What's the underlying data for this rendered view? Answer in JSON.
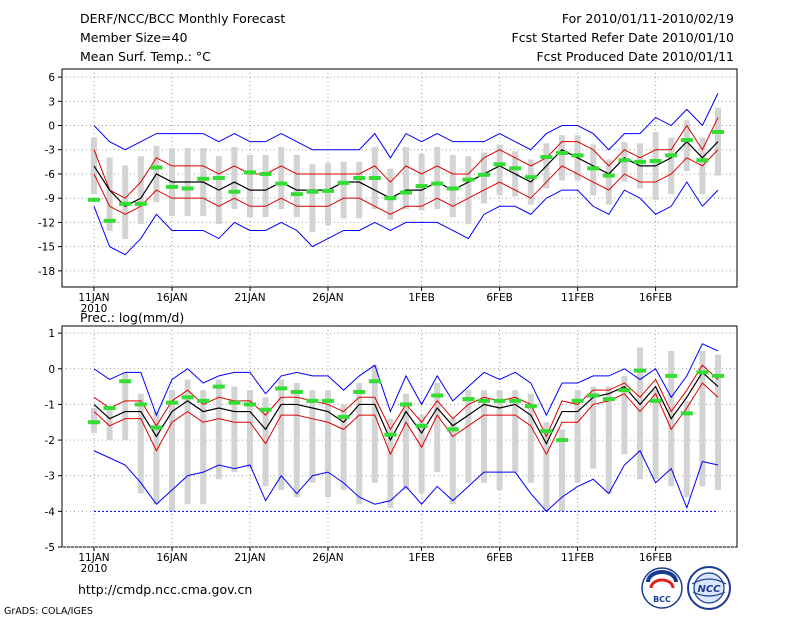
{
  "header": {
    "left": [
      "DERF/NCC/BCC Monthly Forecast",
      "Member Size=40",
      "Mean Surf. Temp.: °C"
    ],
    "right": [
      "For 2010/01/11-2010/02/19",
      "Fcst Started Refer Date 2010/01/10",
      "Fcst Produced Date 2010/01/11"
    ]
  },
  "precip_label": "Prec.: log(mm/d)",
  "footer": {
    "url": "http://cmdp.ncc.cma.gov.cn",
    "credit": "GrADS: COLA/IGES",
    "logos": [
      {
        "name": "bcc-logo",
        "text": "BCC"
      },
      {
        "name": "ncc-logo",
        "text": "NCC"
      }
    ]
  },
  "colors": {
    "grid": "#9a9a9a",
    "bar": "#d3d3d3",
    "ensemble_min_max": "#0000ff",
    "std_band": "#dd0000",
    "mean": "#000000",
    "median": "#33dd33"
  },
  "chart_data": [
    {
      "type": "line",
      "title": "Mean Surf. Temp.: °C",
      "ylim": [
        -20,
        7
      ],
      "yticks": [
        6,
        3,
        0,
        -3,
        -6,
        -9,
        -12,
        -15,
        -18
      ],
      "x_days": 40,
      "xticks": [
        {
          "day": 0,
          "label": "11JAN",
          "sub": "2010"
        },
        {
          "day": 5,
          "label": "16JAN"
        },
        {
          "day": 10,
          "label": "21JAN"
        },
        {
          "day": 15,
          "label": "26JAN"
        },
        {
          "day": 21,
          "label": "1FEB"
        },
        {
          "day": 26,
          "label": "6FEB"
        },
        {
          "day": 31,
          "label": "11FEB"
        },
        {
          "day": 36,
          "label": "16FEB"
        }
      ],
      "series": [
        {
          "name": "max",
          "values": [
            0,
            -2,
            -3,
            -2,
            -1,
            -1,
            -1,
            -1,
            -2,
            -1,
            -2,
            -2,
            -1,
            -2,
            -3,
            -3,
            -3,
            -3,
            -1,
            -4,
            -1,
            -2,
            -1,
            -2,
            -2,
            -2,
            -1,
            -2,
            -3,
            -1,
            0,
            0,
            -1,
            -3,
            -1,
            -1,
            1,
            0,
            2,
            0,
            4
          ]
        },
        {
          "name": "std_high",
          "values": [
            -3,
            -8,
            -9,
            -7,
            -4,
            -5,
            -5,
            -5,
            -6,
            -5,
            -6,
            -6,
            -5,
            -6,
            -6,
            -6,
            -6,
            -6,
            -5,
            -7,
            -5,
            -6,
            -5,
            -6,
            -6,
            -4,
            -3,
            -4,
            -5,
            -4,
            -2,
            -2,
            -3,
            -5,
            -3,
            -4,
            -3,
            -3,
            0,
            -3,
            1
          ]
        },
        {
          "name": "mean",
          "values": [
            -5,
            -8,
            -10,
            -9,
            -6,
            -7,
            -7,
            -7,
            -8,
            -7,
            -8,
            -8,
            -7,
            -8,
            -8,
            -8,
            -7,
            -7,
            -8,
            -9,
            -8,
            -8,
            -7,
            -8,
            -7,
            -6,
            -5,
            -6,
            -7,
            -5,
            -3,
            -4,
            -5,
            -6,
            -4,
            -5,
            -5,
            -4,
            -2,
            -4,
            -2
          ]
        },
        {
          "name": "std_low",
          "values": [
            -6,
            -10,
            -11,
            -10,
            -8,
            -9,
            -9,
            -9,
            -10,
            -9,
            -10,
            -10,
            -9,
            -10,
            -10,
            -10,
            -9,
            -9,
            -10,
            -11,
            -10,
            -10,
            -9,
            -10,
            -9,
            -8,
            -7,
            -8,
            -9,
            -7,
            -5,
            -6,
            -7,
            -8,
            -6,
            -7,
            -7,
            -6,
            -4,
            -5,
            -3
          ]
        },
        {
          "name": "min",
          "values": [
            -10,
            -15,
            -16,
            -14,
            -11,
            -13,
            -13,
            -13,
            -14,
            -12,
            -13,
            -13,
            -12,
            -13,
            -15,
            -14,
            -13,
            -13,
            -12,
            -13,
            -12,
            -12,
            -12,
            -13,
            -14,
            -11,
            -10,
            -10,
            -11,
            -9,
            -8,
            -8,
            -10,
            -11,
            -8,
            -9,
            -11,
            -10,
            -7,
            -10,
            -8
          ]
        },
        {
          "name": "median",
          "values": [
            -9.2,
            -11.8,
            -9.7,
            -9.7,
            -5.2,
            -7.6,
            -7.8,
            -6.6,
            -6.5,
            -8.2,
            -5.8,
            -6,
            -7.2,
            -8.5,
            -8.2,
            -8.1,
            -7.1,
            -6.5,
            -6.5,
            -9,
            -8.3,
            -7.5,
            -7.2,
            -7.8,
            -6.7,
            -6.1,
            -4.8,
            -5.3,
            -6.4,
            -3.9,
            -3.4,
            -3.7,
            -5.3,
            -6.2,
            -4.3,
            -4.5,
            -4.4,
            -3.7,
            -1.8,
            -4.3,
            -0.8
          ]
        }
      ]
    },
    {
      "type": "line",
      "title": "Prec.: log(mm/d)",
      "ylim": [
        -5,
        1.2
      ],
      "yticks": [
        1,
        0,
        -1,
        -2,
        -3,
        -4,
        -5
      ],
      "x_days": 40,
      "xticks": [
        {
          "day": 0,
          "label": "11JAN",
          "sub": "2010"
        },
        {
          "day": 5,
          "label": "16JAN"
        },
        {
          "day": 10,
          "label": "21JAN"
        },
        {
          "day": 15,
          "label": "26JAN"
        },
        {
          "day": 21,
          "label": "1FEB"
        },
        {
          "day": 26,
          "label": "6FEB"
        },
        {
          "day": 31,
          "label": "11FEB"
        },
        {
          "day": 36,
          "label": "16FEB"
        }
      ],
      "series": [
        {
          "name": "max",
          "values": [
            0,
            -0.3,
            -0.1,
            -0.1,
            -1.3,
            -0.3,
            0,
            -0.4,
            -0.2,
            -0.1,
            -0.1,
            -0.7,
            -0.2,
            -0.1,
            -0.2,
            -0.2,
            -0.6,
            -0.2,
            0.1,
            -1.2,
            -0.2,
            -1,
            -0.2,
            -0.9,
            -0.5,
            -0.1,
            -0.3,
            -0.1,
            -0.4,
            -1.3,
            -0.4,
            -0.4,
            -0.2,
            -0.2,
            0,
            -0.3,
            0,
            -0.8,
            -0.2,
            0.7,
            0.5
          ]
        },
        {
          "name": "std_high",
          "values": [
            -0.8,
            -1.1,
            -0.9,
            -0.9,
            -1.6,
            -0.9,
            -0.6,
            -1,
            -0.8,
            -0.9,
            -0.9,
            -1.3,
            -0.8,
            -0.8,
            -0.9,
            -1,
            -1.2,
            -0.8,
            -0.8,
            -1.7,
            -1,
            -1.5,
            -0.9,
            -1.4,
            -1,
            -0.8,
            -0.9,
            -0.8,
            -1,
            -1.9,
            -0.9,
            -1,
            -0.6,
            -0.6,
            -0.4,
            -0.8,
            -0.3,
            -1.2,
            -0.6,
            0.1,
            -0.3
          ]
        },
        {
          "name": "mean",
          "values": [
            -1,
            -1.4,
            -1.2,
            -1.2,
            -1.9,
            -1.2,
            -0.9,
            -1.2,
            -1.1,
            -1.2,
            -1.2,
            -1.7,
            -1,
            -1,
            -1.1,
            -1.2,
            -1.5,
            -1,
            -1,
            -2,
            -1.2,
            -1.8,
            -1.1,
            -1.6,
            -1.3,
            -1,
            -1.1,
            -1,
            -1.3,
            -2.1,
            -1.2,
            -1.2,
            -0.8,
            -0.7,
            -0.5,
            -1,
            -0.5,
            -1.4,
            -0.8,
            -0.1,
            -0.5
          ]
        },
        {
          "name": "std_low",
          "values": [
            -1.2,
            -1.6,
            -1.4,
            -1.4,
            -2.3,
            -1.5,
            -1.2,
            -1.5,
            -1.4,
            -1.5,
            -1.5,
            -2.1,
            -1.3,
            -1.3,
            -1.4,
            -1.5,
            -1.7,
            -1.3,
            -1.3,
            -2.4,
            -1.5,
            -2.2,
            -1.3,
            -1.9,
            -1.6,
            -1.3,
            -1.3,
            -1.3,
            -1.6,
            -2.4,
            -1.5,
            -1.5,
            -1,
            -0.9,
            -0.7,
            -1.2,
            -0.7,
            -1.7,
            -1.1,
            -0.4,
            -0.8
          ]
        },
        {
          "name": "min",
          "values": [
            -2.3,
            -2.5,
            -2.7,
            -3.2,
            -3.8,
            -3.4,
            -3,
            -2.9,
            -2.7,
            -2.8,
            -2.7,
            -3.7,
            -3,
            -3.5,
            -3,
            -2.9,
            -3.2,
            -3.6,
            -3.8,
            -3.7,
            -3.3,
            -3.8,
            -3.3,
            -3.7,
            -3.3,
            -2.9,
            -2.9,
            -2.9,
            -3.5,
            -4,
            -3.6,
            -3.3,
            -3.1,
            -3.5,
            -2.7,
            -2.3,
            -3.2,
            -2.8,
            -3.9,
            -2.6,
            -2.7
          ]
        },
        {
          "name": "median",
          "values": [
            -1.5,
            -1.1,
            -0.35,
            -1,
            -1.65,
            -0.95,
            -0.8,
            -0.9,
            -0.5,
            -0.95,
            -1,
            -1.15,
            -0.55,
            -0.65,
            -0.9,
            -0.9,
            -1.35,
            -0.65,
            -0.35,
            -1.85,
            -1,
            -1.6,
            -0.75,
            -1.7,
            -0.85,
            -0.9,
            -0.9,
            -0.9,
            -1.05,
            -1.75,
            -2,
            -0.9,
            -0.75,
            -0.85,
            -0.6,
            -0.05,
            -0.9,
            -0.2,
            -1.25,
            -0.1,
            -0.2
          ]
        },
        {
          "name": "bar_top",
          "values": [
            -1.1,
            -1.1,
            -0.1,
            -0.7,
            -1.2,
            -0.6,
            -0.3,
            -0.6,
            -0.3,
            -0.5,
            -0.6,
            -0.8,
            -0.3,
            -0.4,
            -0.6,
            -0.6,
            -1,
            -0.4,
            0.1,
            -1.4,
            -0.7,
            -1.3,
            -0.4,
            -1.4,
            -0.6,
            -0.6,
            -0.6,
            -0.6,
            -0.7,
            -1.5,
            -1.7,
            -0.6,
            -0.5,
            -0.5,
            -0.2,
            0.6,
            -0.6,
            0.5,
            -0.9,
            0.5,
            0.4
          ]
        },
        {
          "name": "bar_bottom",
          "values": [
            -1.8,
            -2,
            -2,
            -3.5,
            -3.8,
            -4,
            -3.8,
            -3.8,
            -3.1,
            -2.9,
            -2.8,
            -3.3,
            -3.4,
            -3.6,
            -3.2,
            -3.6,
            -3.4,
            -3.8,
            -3.2,
            -3.9,
            -3.4,
            -3.5,
            -2.9,
            -3.8,
            -3.2,
            -3.2,
            -3.4,
            -2.9,
            -3.2,
            -4,
            -4,
            -3.2,
            -2.8,
            -3.5,
            -2.4,
            -3.1,
            -3.1,
            -3.3,
            -3.6,
            -3.3,
            -3.4
          ]
        },
        {
          "name": "threshold",
          "values": [
            -4
          ]
        }
      ]
    }
  ]
}
